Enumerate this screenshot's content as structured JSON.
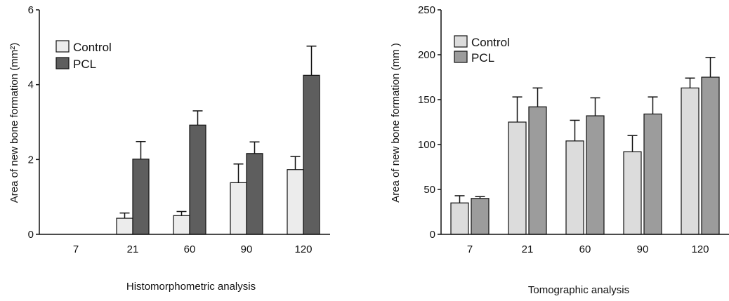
{
  "chart_data": [
    {
      "type": "bar",
      "xlabel": "Histomorphometric analysis",
      "ylabel": "Area of new bone formation (mm²)",
      "categories": [
        "7",
        "21",
        "60",
        "90",
        "120"
      ],
      "ylim": [
        0,
        6
      ],
      "yticks": [
        "0",
        "2",
        "4",
        "6"
      ],
      "legend": "top-left",
      "series": [
        {
          "name": "Control",
          "color": "#ececec",
          "values": [
            0,
            0.43,
            0.5,
            1.38,
            1.73
          ],
          "errors": [
            0,
            0.14,
            0.11,
            0.5,
            0.35
          ]
        },
        {
          "name": "PCL",
          "color": "#5e5e5e",
          "values": [
            0,
            2.01,
            2.92,
            2.16,
            4.25
          ],
          "errors": [
            0,
            0.47,
            0.38,
            0.31,
            0.78
          ]
        }
      ]
    },
    {
      "type": "bar",
      "xlabel": "Tomographic analysis",
      "ylabel": "Area of new bone formation (mm )",
      "categories": [
        "7",
        "21",
        "60",
        "90",
        "120"
      ],
      "ylim": [
        0,
        250
      ],
      "yticks": [
        "0",
        "50",
        "100",
        "150",
        "200",
        "250"
      ],
      "legend": "top-left",
      "series": [
        {
          "name": "Control",
          "color": "#dcdcdc",
          "values": [
            35,
            125,
            104,
            92,
            163
          ],
          "errors": [
            8,
            28,
            23,
            18,
            11
          ]
        },
        {
          "name": "PCL",
          "color": "#9c9c9c",
          "values": [
            40,
            142,
            132,
            134,
            175
          ],
          "errors": [
            2,
            21,
            20,
            19,
            22
          ]
        }
      ]
    }
  ]
}
